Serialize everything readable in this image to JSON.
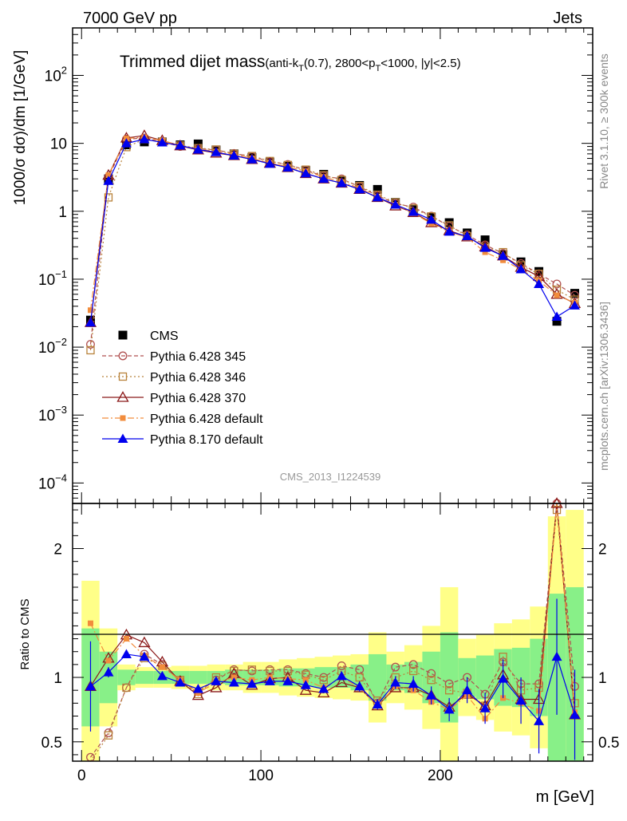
{
  "header": {
    "left": "7000 GeV pp",
    "right": "Jets"
  },
  "side_labels": {
    "rivet": "Rivet 3.1.10, ≥ 300k events",
    "mcplots": "mcplots.cern.ch [arXiv:1306.3436]"
  },
  "chart_data": {
    "type": "line",
    "title": "Trimmed dijet mass",
    "title_suffix_parts": [
      "(anti-k",
      "T",
      "(0.7), 2800<p",
      "T",
      "<1000, |y|<2.5)"
    ],
    "watermark": "CMS_2013_I1224539",
    "xlabel": "m [GeV]",
    "ylabel_parts": [
      "1000/σ dσ)/dm [1/GeV]"
    ],
    "ratio_ylabel": "Ratio to CMS",
    "xlim": [
      -5,
      285
    ],
    "ylim_main": [
      5e-05,
      500
    ],
    "yscale_main": "log",
    "ylim_ratio": [
      0.35,
      2.35
    ],
    "x_ticks": [
      "0",
      "100",
      "200"
    ],
    "y_ticks_main": [
      {
        "base": "10",
        "exp": "2"
      },
      {
        "base": "10",
        "exp": ""
      },
      {
        "base": "1",
        "exp": ""
      },
      {
        "base": "10",
        "exp": "−1"
      },
      {
        "base": "10",
        "exp": "−2"
      },
      {
        "base": "10",
        "exp": "−3"
      },
      {
        "base": "10",
        "exp": "−4"
      }
    ],
    "y_ticks_ratio": [
      "2",
      "1",
      "0.5"
    ],
    "x": [
      5,
      15,
      25,
      35,
      45,
      55,
      65,
      75,
      85,
      95,
      105,
      115,
      125,
      135,
      145,
      155,
      165,
      175,
      185,
      195,
      205,
      215,
      225,
      235,
      245,
      255,
      265,
      275
    ],
    "series": [
      {
        "name": "CMS",
        "color": "#000000",
        "marker": "square-filled",
        "values": [
          0.025,
          3.0,
          9.5,
          10.5,
          10.5,
          9.5,
          9.8,
          8.0,
          7.0,
          6.2,
          5.3,
          4.6,
          4.0,
          3.5,
          2.8,
          2.4,
          2.1,
          1.35,
          1.05,
          0.82,
          0.68,
          0.48,
          0.38,
          0.23,
          0.18,
          0.13,
          0.024,
          0.062
        ]
      },
      {
        "name": "Pythia 6.428 345",
        "color": "#b05050",
        "marker": "circle-open",
        "values": [
          0.011,
          3.2,
          11.5,
          12.0,
          10.5,
          9.0,
          8.4,
          8.0,
          7.1,
          6.4,
          5.4,
          4.9,
          4.0,
          3.3,
          3.0,
          2.3,
          1.7,
          1.3,
          1.15,
          0.85,
          0.6,
          0.45,
          0.32,
          0.24,
          0.17,
          0.12,
          0.085,
          0.058
        ]
      },
      {
        "name": "Pythia 6.428 346",
        "color": "#b8823a",
        "marker": "square-open",
        "values": [
          0.009,
          1.6,
          8.8,
          11.5,
          10.5,
          9.3,
          8.5,
          8.1,
          7.0,
          6.5,
          5.5,
          4.8,
          4.1,
          3.4,
          2.9,
          2.35,
          1.75,
          1.35,
          1.1,
          0.84,
          0.62,
          0.43,
          0.3,
          0.25,
          0.16,
          0.12,
          0.07,
          0.05
        ]
      },
      {
        "name": "Pythia 6.428 370",
        "color": "#8b1a1a",
        "marker": "triangle-open",
        "values": [
          0.023,
          3.4,
          12.0,
          13.0,
          11.0,
          9.2,
          8.0,
          7.2,
          6.6,
          5.8,
          5.1,
          4.4,
          3.6,
          3.0,
          2.6,
          2.1,
          1.6,
          1.2,
          0.96,
          0.68,
          0.52,
          0.42,
          0.3,
          0.22,
          0.15,
          0.11,
          0.06,
          0.044
        ]
      },
      {
        "name": "Pythia 6.428 default",
        "color": "#f28c3c",
        "marker": "square-filled-small",
        "values": [
          0.035,
          3.4,
          11.8,
          12.3,
          11.0,
          9.3,
          8.2,
          7.6,
          6.9,
          6.0,
          5.2,
          4.5,
          3.9,
          3.2,
          2.7,
          2.2,
          1.6,
          1.25,
          0.94,
          0.66,
          0.5,
          0.41,
          0.25,
          0.19,
          0.14,
          0.095,
          0.058,
          0.045
        ]
      },
      {
        "name": "Pythia 8.170 default",
        "color": "#0000ee",
        "marker": "triangle-filled",
        "values": [
          0.023,
          2.8,
          10.0,
          11.5,
          10.3,
          9.3,
          8.1,
          7.4,
          6.6,
          5.8,
          5.0,
          4.4,
          3.6,
          3.0,
          2.6,
          2.1,
          1.6,
          1.25,
          0.98,
          0.75,
          0.5,
          0.43,
          0.29,
          0.22,
          0.14,
          0.085,
          0.028,
          0.041
        ]
      }
    ],
    "ratios": {
      "Pythia 6.428 345": [
        0.38,
        0.57,
        0.92,
        1.18,
        1.1,
        0.97,
        0.89,
        0.98,
        1.06,
        1.05,
        1.06,
        1.06,
        1.03,
        1.0,
        1.09,
        1.06,
        0.8,
        1.08,
        1.1,
        1.03,
        0.95,
        1.0,
        0.87,
        1.12,
        0.95,
        0.95,
        2.35,
        0.93
      ],
      "Pythia 6.428 346": [
        0.3,
        0.55,
        0.92,
        1.15,
        1.09,
        0.98,
        0.87,
        1.0,
        1.05,
        1.06,
        1.05,
        1.05,
        1.02,
        0.98,
        1.05,
        1.0,
        0.82,
        1.0,
        1.05,
        0.98,
        0.9,
        0.88,
        0.78,
        1.16,
        0.9,
        0.92,
        2.3,
        0.8
      ],
      "Pythia 6.428 370": [
        0.93,
        1.15,
        1.33,
        1.27,
        1.12,
        0.97,
        0.86,
        0.92,
        1.03,
        0.94,
        0.99,
        1.0,
        0.9,
        0.88,
        0.96,
        0.92,
        0.78,
        0.92,
        0.92,
        0.86,
        0.77,
        0.87,
        0.78,
        1.02,
        0.83,
        0.83,
        2.35,
        0.71
      ],
      "Pythia 6.428 default": [
        1.42,
        1.13,
        1.3,
        1.17,
        1.08,
        0.98,
        0.88,
        0.96,
        1.0,
        0.98,
        1.0,
        0.99,
        0.98,
        0.92,
        1.0,
        0.92,
        0.78,
        0.93,
        0.9,
        0.81,
        0.75,
        0.86,
        0.68,
        0.84,
        0.8,
        0.74,
        2.4,
        0.73
      ],
      "Pythia 8.170 default": [
        0.93,
        1.04,
        1.18,
        1.16,
        1.01,
        0.96,
        0.91,
        0.97,
        0.96,
        0.95,
        0.97,
        0.97,
        0.94,
        0.91,
        1.01,
        0.93,
        0.79,
        0.96,
        0.95,
        0.86,
        0.75,
        0.9,
        0.76,
        0.99,
        0.82,
        0.66,
        1.16,
        0.71
      ]
    },
    "ratio_errors": {
      "Pythia 8.170 default": [
        0.35,
        0.04,
        0.03,
        0.03,
        0.02,
        0.02,
        0.02,
        0.02,
        0.02,
        0.02,
        0.02,
        0.02,
        0.02,
        0.03,
        0.03,
        0.04,
        0.04,
        0.05,
        0.06,
        0.07,
        0.09,
        0.1,
        0.12,
        0.15,
        0.18,
        0.25,
        0.45,
        0.35
      ]
    },
    "bands": {
      "yellow_halfwidth": [
        0.75,
        0.38,
        0.1,
        0.08,
        0.08,
        0.09,
        0.09,
        0.1,
        0.1,
        0.12,
        0.12,
        0.14,
        0.15,
        0.16,
        0.17,
        0.18,
        0.35,
        0.2,
        0.25,
        0.4,
        0.7,
        0.3,
        0.33,
        0.42,
        0.45,
        0.55,
        1.25,
        1.3
      ],
      "green_halfwidth": [
        0.38,
        0.2,
        0.06,
        0.05,
        0.05,
        0.05,
        0.05,
        0.05,
        0.06,
        0.06,
        0.06,
        0.07,
        0.07,
        0.08,
        0.08,
        0.1,
        0.18,
        0.1,
        0.12,
        0.2,
        0.35,
        0.15,
        0.17,
        0.22,
        0.23,
        0.3,
        0.65,
        0.7
      ]
    }
  }
}
